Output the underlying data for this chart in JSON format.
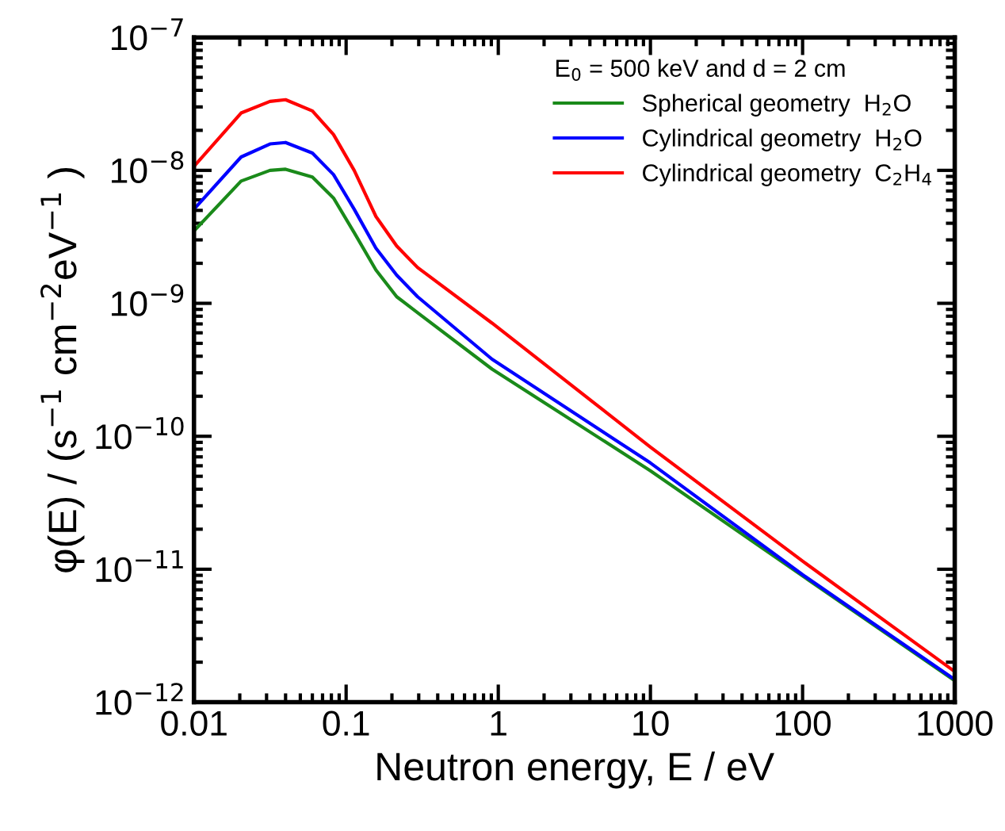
{
  "chart_data": {
    "type": "line",
    "xlabel": "Neutron energy, E / eV",
    "ylabel": "φ(E) / (s$^{−1}$ cm$^{−2}$eV$^{−1}$ )",
    "legend_title": "E$_{0}$ = 500 keV and d = 2 cm",
    "log": "xy",
    "grid": false,
    "legend": "top right",
    "line_style": "solid",
    "marker": "none",
    "xlim": [
      0.01,
      1000
    ],
    "ylim": [
      1e-12,
      1e-07
    ],
    "xticks": [
      0.01,
      0.1,
      1,
      10,
      100,
      1000
    ],
    "yticks": [
      {
        "value": 1e-12,
        "label": "10$^{−12}$"
      },
      {
        "value": 1e-11,
        "label": "10$^{−11}$"
      },
      {
        "value": 1e-10,
        "label": "10$^{−10}$"
      },
      {
        "value": 1e-09,
        "label": "10$^{−9}$"
      },
      {
        "value": 1e-08,
        "label": "10$^{−8}$"
      },
      {
        "value": 1e-07,
        "label": "10$^{−7}$"
      }
    ],
    "x": [
      0.01,
      0.0204,
      0.0316,
      0.04,
      0.06,
      0.0826,
      0.113,
      0.157,
      0.215,
      0.295,
      0.91,
      10,
      100,
      1000
    ],
    "series": [
      {
        "name": "Spherical geometry  H$_{2}$O",
        "color": "#1a8a1a",
        "values": [
          3.5e-09,
          8.3e-09,
          1e-08,
          1.02e-08,
          8.9e-09,
          6.2e-09,
          3.4e-09,
          1.78e-09,
          1.12e-09,
          8.5e-10,
          3.2e-10,
          5.5e-11,
          8.9e-12,
          1.45e-12
        ]
      },
      {
        "name": "Cylindrical geometry  H$_{2}$O",
        "color": "#0000ff",
        "values": [
          5.1e-09,
          1.26e-08,
          1.58e-08,
          1.62e-08,
          1.35e-08,
          9.3e-09,
          5.1e-09,
          2.6e-09,
          1.63e-09,
          1.12e-09,
          3.8e-10,
          6.3e-11,
          9.1e-12,
          1.48e-12
        ]
      },
      {
        "name": "Cylindrical geometry  C$_{2}$H$_{4}$",
        "color": "#ff0000",
        "values": [
          1.07e-08,
          2.7e-08,
          3.3e-08,
          3.4e-08,
          2.8e-08,
          1.86e-08,
          1e-08,
          4.5e-09,
          2.7e-09,
          1.86e-09,
          7.1e-10,
          8.3e-11,
          1.15e-11,
          1.7e-12
        ]
      }
    ]
  }
}
